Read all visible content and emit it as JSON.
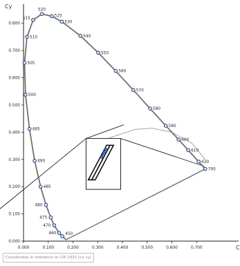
{
  "chart_data": {
    "type": "scatter",
    "xlabel": "Cx",
    "ylabel": "Cy",
    "xlim": [
      0,
      0.8
    ],
    "ylim": [
      0,
      0.85
    ],
    "x_ticks": [
      "0.000",
      "0.100",
      "0.200",
      "0.300",
      "0.400",
      "0.500",
      "0.600",
      "0.700"
    ],
    "y_ticks": [
      "0.000",
      "0.100",
      "0.200",
      "0.300",
      "0.400",
      "0.500",
      "0.600",
      "0.700",
      "0.800"
    ],
    "grid": false,
    "series": [
      {
        "name": "",
        "color": "#707070",
        "marker_color": "#1f3d7a",
        "wavelengths": [
          "450",
          "460",
          "470",
          "475",
          "480",
          "485",
          "490",
          "495",
          "500",
          "505",
          "510",
          "515",
          "520",
          "525",
          "530",
          "540",
          "550",
          "560",
          "570",
          "580",
          "590",
          "600",
          "610",
          "630",
          "700"
        ],
        "x": [
          0.157,
          0.144,
          0.124,
          0.11,
          0.091,
          0.069,
          0.045,
          0.024,
          0.008,
          0.004,
          0.014,
          0.039,
          0.074,
          0.114,
          0.155,
          0.23,
          0.302,
          0.373,
          0.444,
          0.512,
          0.575,
          0.627,
          0.666,
          0.708,
          0.735
        ],
        "y": [
          0.018,
          0.03,
          0.058,
          0.087,
          0.133,
          0.2,
          0.295,
          0.412,
          0.538,
          0.655,
          0.75,
          0.812,
          0.834,
          0.826,
          0.806,
          0.754,
          0.692,
          0.625,
          0.555,
          0.487,
          0.424,
          0.373,
          0.334,
          0.292,
          0.265
        ]
      }
    ],
    "locus_tail": {
      "x": [
        0.172,
        0.157
      ],
      "y": [
        0.005,
        0.018
      ]
    },
    "purple_line": {
      "x": [
        0.172,
        0.735
      ],
      "y": [
        0.005,
        0.265
      ]
    },
    "planckian_arc": {
      "x": [
        0.27,
        0.35,
        0.45,
        0.52,
        0.6,
        0.68,
        0.735
      ],
      "y": [
        0.33,
        0.38,
        0.41,
        0.415,
        0.4,
        0.36,
        0.3
      ]
    },
    "zoom_box": {
      "x": [
        0.253,
        0.393
      ],
      "y": [
        0.19,
        0.377
      ]
    },
    "zoom_lines": [
      {
        "x": [
          -0.1,
          0.253
        ],
        "y": [
          0.115,
          0.377
        ]
      },
      {
        "x": [
          0.393,
          0.73
        ],
        "y": [
          0.377,
          0.275
        ]
      },
      {
        "x": [
          0.253,
          0.405
        ],
        "y": [
          0.377,
          0.427
        ]
      }
    ],
    "bins": [
      {
        "x": [
          0.262,
          0.276,
          0.35,
          0.336
        ],
        "y": [
          0.225,
          0.225,
          0.352,
          0.352
        ]
      },
      {
        "x": [
          0.276,
          0.29,
          0.364,
          0.35
        ],
        "y": [
          0.225,
          0.225,
          0.352,
          0.352
        ]
      }
    ],
    "blue_points": {
      "x": [
        0.316,
        0.326,
        0.333
      ],
      "y": [
        0.308,
        0.326,
        0.338
      ]
    },
    "caption": "Coordinates in reference to CIE 1931 (cx cy)"
  }
}
